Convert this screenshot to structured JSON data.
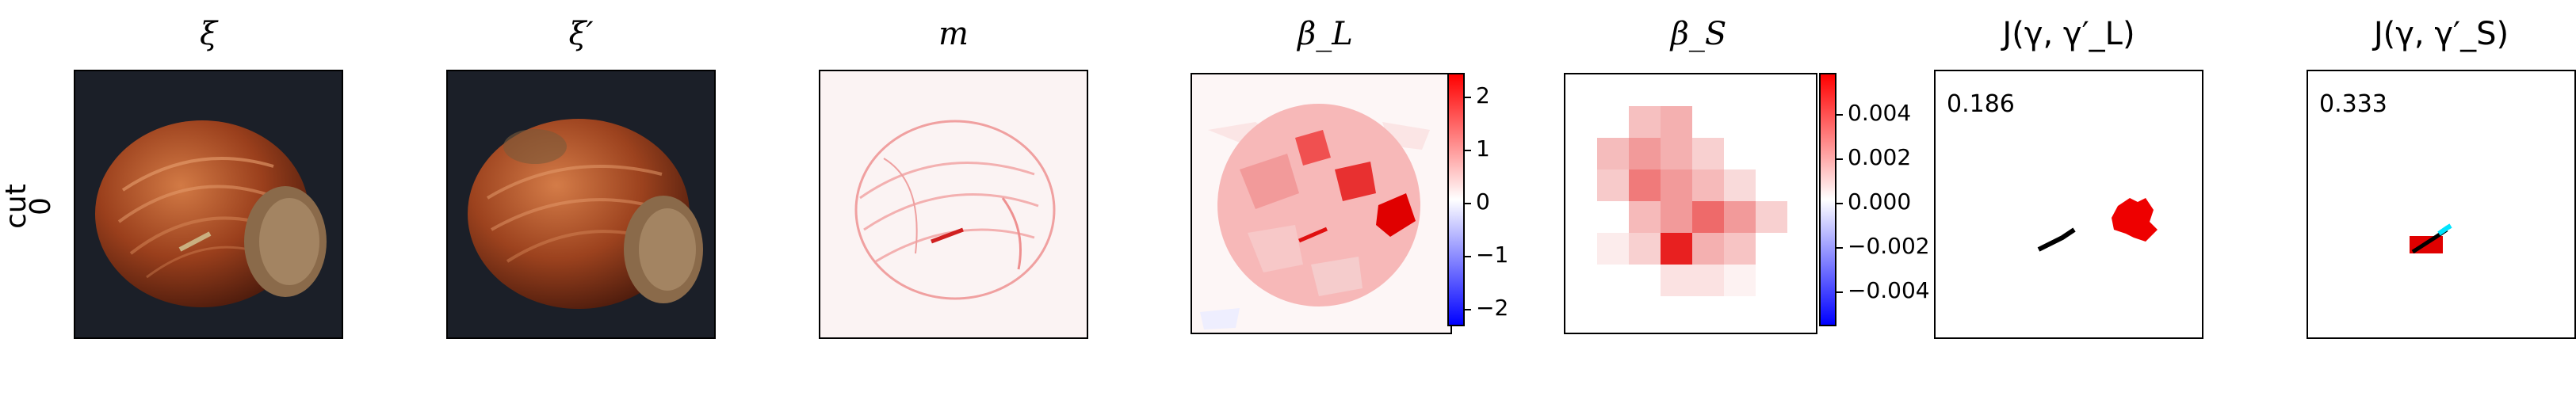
{
  "row_label": {
    "line1": "cut",
    "line2": "0"
  },
  "panels": [
    {
      "title": "ξ"
    },
    {
      "title": "ξ′"
    },
    {
      "title": "m"
    },
    {
      "title": "β_L"
    },
    {
      "title": "β_S"
    },
    {
      "title": "J(γ, γ′_L)",
      "score": "0.186"
    },
    {
      "title": "J(γ, γ′_S)",
      "score": "0.333"
    }
  ],
  "colorbar_L": {
    "ticks": [
      "2",
      "1",
      "0",
      "−1",
      "−2"
    ],
    "colors": [
      "#0000ff",
      "#ffffff",
      "#ff0000"
    ]
  },
  "colorbar_S": {
    "ticks": [
      "0.004",
      "0.002",
      "0.000",
      "−0.002",
      "−0.004"
    ],
    "colors": [
      "#0000ff",
      "#ffffff",
      "#ff0000"
    ]
  }
}
